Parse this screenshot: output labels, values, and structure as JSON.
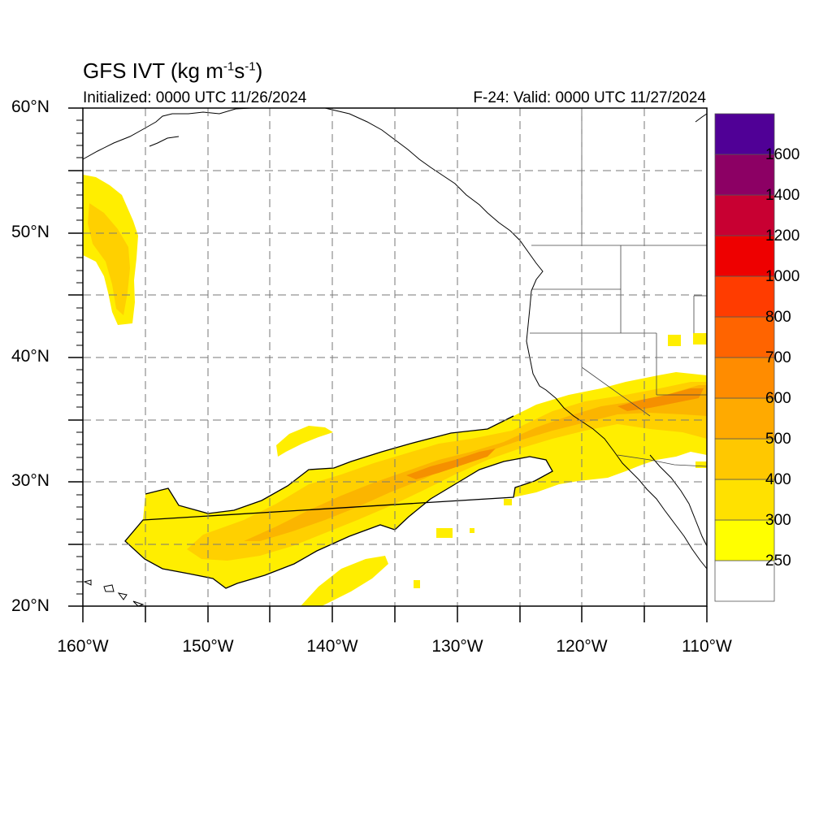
{
  "title": {
    "main": "GFS IVT (kg m",
    "sup1": "-1",
    "mid": "s",
    "sup2": "-1",
    "close": ")"
  },
  "subtitle_left": "Initialized: 0000 UTC 11/26/2024",
  "subtitle_right": "F-24: Valid: 0000 UTC 11/27/2024",
  "lat_labels": [
    "60°N",
    "50°N",
    "40°N",
    "30°N",
    "20°N"
  ],
  "lon_labels": [
    "160°W",
    "150°W",
    "140°W",
    "130°W",
    "120°W",
    "110°W"
  ],
  "colorbar": {
    "labels": [
      "1600",
      "1400",
      "1200",
      "1000",
      "800",
      "700",
      "600",
      "500",
      "400",
      "300",
      "250"
    ],
    "colors": [
      "#ffffff",
      "#ffff00",
      "#ffe100",
      "#ffc800",
      "#ffaa00",
      "#ff8c00",
      "#ff6400",
      "#ff3c00",
      "#ee0000",
      "#c80032",
      "#8c0064",
      "#500096"
    ]
  },
  "map": {
    "lon_range": [
      -160,
      -110
    ],
    "lat_range": [
      20,
      60
    ],
    "gridlines": "dashed every 5 degrees",
    "field_colors": {
      "low": "#ffee00",
      "mid": "#ffd000",
      "high": "#fbb500",
      "core": "#f59000"
    }
  }
}
